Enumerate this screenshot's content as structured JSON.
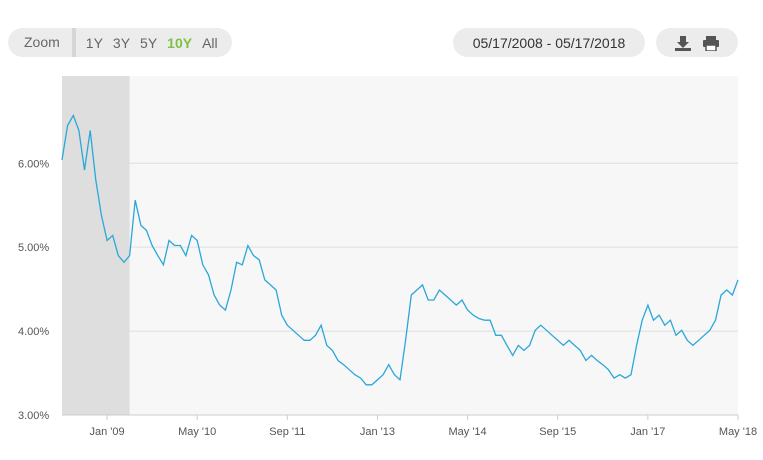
{
  "toolbar": {
    "zoom_label": "Zoom",
    "zoom_options": [
      "1Y",
      "3Y",
      "5Y",
      "10Y",
      "All"
    ],
    "selected": "10Y",
    "selected_color": "#7dc242",
    "date_range": "05/17/2008 - 05/17/2018"
  },
  "chart_data": {
    "type": "line",
    "series": [
      {
        "color": "#2aa7d9",
        "x": [
          "2008-05",
          "2008-06",
          "2008-07",
          "2008-08",
          "2008-09",
          "2008-10",
          "2008-11",
          "2008-12",
          "2009-01",
          "2009-02",
          "2009-03",
          "2009-04",
          "2009-05",
          "2009-06",
          "2009-07",
          "2009-08",
          "2009-09",
          "2009-10",
          "2009-11",
          "2009-12",
          "2010-01",
          "2010-02",
          "2010-03",
          "2010-04",
          "2010-05",
          "2010-06",
          "2010-07",
          "2010-08",
          "2010-09",
          "2010-10",
          "2010-11",
          "2010-12",
          "2011-01",
          "2011-02",
          "2011-03",
          "2011-04",
          "2011-05",
          "2011-06",
          "2011-07",
          "2011-08",
          "2011-09",
          "2011-10",
          "2011-11",
          "2011-12",
          "2012-01",
          "2012-02",
          "2012-03",
          "2012-04",
          "2012-05",
          "2012-06",
          "2012-07",
          "2012-08",
          "2012-09",
          "2012-10",
          "2012-11",
          "2012-12",
          "2013-01",
          "2013-02",
          "2013-03",
          "2013-04",
          "2013-05",
          "2013-06",
          "2013-07",
          "2013-08",
          "2013-09",
          "2013-10",
          "2013-11",
          "2013-12",
          "2014-01",
          "2014-02",
          "2014-03",
          "2014-04",
          "2014-05",
          "2014-06",
          "2014-07",
          "2014-08",
          "2014-09",
          "2014-10",
          "2014-11",
          "2014-12",
          "2015-01",
          "2015-02",
          "2015-03",
          "2015-04",
          "2015-05",
          "2015-06",
          "2015-07",
          "2015-08",
          "2015-09",
          "2015-10",
          "2015-11",
          "2015-12",
          "2016-01",
          "2016-02",
          "2016-03",
          "2016-04",
          "2016-05",
          "2016-06",
          "2016-07",
          "2016-08",
          "2016-09",
          "2016-10",
          "2016-11",
          "2016-12",
          "2017-01",
          "2017-02",
          "2017-03",
          "2017-04",
          "2017-05",
          "2017-06",
          "2017-07",
          "2017-08",
          "2017-09",
          "2017-10",
          "2017-11",
          "2017-12",
          "2018-01",
          "2018-02",
          "2018-03",
          "2018-04",
          "2018-05"
        ],
        "values": [
          6.04,
          6.45,
          6.57,
          6.39,
          5.92,
          6.39,
          5.8,
          5.38,
          5.08,
          5.14,
          4.9,
          4.82,
          4.9,
          5.56,
          5.26,
          5.2,
          5.02,
          4.9,
          4.79,
          5.08,
          5.02,
          5.02,
          4.9,
          5.14,
          5.08,
          4.79,
          4.67,
          4.43,
          4.31,
          4.25,
          4.49,
          4.82,
          4.79,
          5.02,
          4.9,
          4.85,
          4.61,
          4.55,
          4.49,
          4.19,
          4.07,
          4.01,
          3.95,
          3.89,
          3.89,
          3.95,
          4.07,
          3.83,
          3.77,
          3.65,
          3.6,
          3.54,
          3.48,
          3.44,
          3.36,
          3.36,
          3.42,
          3.48,
          3.6,
          3.48,
          3.42,
          3.89,
          4.43,
          4.49,
          4.55,
          4.37,
          4.37,
          4.49,
          4.43,
          4.37,
          4.31,
          4.37,
          4.25,
          4.19,
          4.15,
          4.13,
          4.13,
          3.95,
          3.95,
          3.83,
          3.71,
          3.83,
          3.77,
          3.83,
          4.01,
          4.07,
          4.01,
          3.95,
          3.89,
          3.83,
          3.89,
          3.83,
          3.77,
          3.65,
          3.71,
          3.65,
          3.6,
          3.54,
          3.44,
          3.48,
          3.44,
          3.48,
          3.83,
          4.13,
          4.31,
          4.13,
          4.19,
          4.07,
          4.13,
          3.95,
          4.01,
          3.89,
          3.83,
          3.89,
          3.95,
          4.01,
          4.13,
          4.43,
          4.49,
          4.43,
          4.61
        ]
      }
    ],
    "xlim": [
      "2008-05",
      "2018-05"
    ],
    "xticks": [
      {
        "value": "2009-01",
        "label": "Jan '09"
      },
      {
        "value": "2010-05",
        "label": "May '10"
      },
      {
        "value": "2011-09",
        "label": "Sep '11"
      },
      {
        "value": "2013-01",
        "label": "Jan '13"
      },
      {
        "value": "2014-05",
        "label": "May '14"
      },
      {
        "value": "2015-09",
        "label": "Sep '15"
      },
      {
        "value": "2017-01",
        "label": "Jan '17"
      },
      {
        "value": "2018-05",
        "label": "May '18"
      }
    ],
    "ylim": [
      3,
      7.04
    ],
    "yticks": [
      {
        "value": 3,
        "label": "3.00%"
      },
      {
        "value": 4,
        "label": "4.00%"
      },
      {
        "value": 5,
        "label": "5.00%"
      },
      {
        "value": 6,
        "label": "6.00%"
      }
    ],
    "grid": true,
    "plot_band": {
      "from": "2008-05",
      "to": "2009-05",
      "color": "#dedede"
    }
  }
}
